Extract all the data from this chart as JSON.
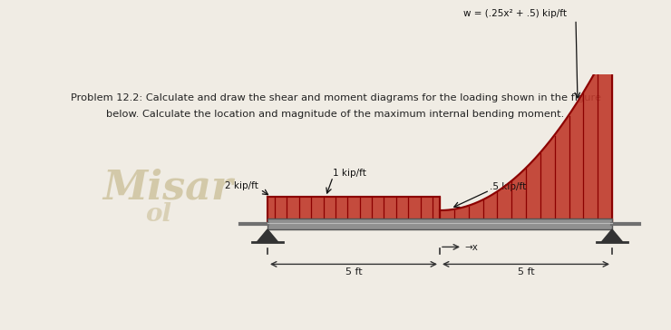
{
  "title_line1": "Problem 12.2: Calculate and draw the shear and moment diagrams for the loading shown in the figure",
  "title_line2": "below. Calculate the location and magnitude of the maximum internal bending moment.",
  "bg_color": "#f0ece4",
  "load_fill_color": "#c0392b",
  "load_line_color": "#8b0000",
  "text_color": "#222222",
  "label_2kip": "2 kip/ft",
  "label_1kip": "1 kip/ft",
  "label_05kip": ".5 kip/ft",
  "label_w": "w = (.25x² + .5) kip/ft",
  "label_5ft_left": "5 ft",
  "label_5ft_right": "5 ft",
  "label_x": "→x",
  "watermark_text": "Misar",
  "watermark_color": "#b0a070"
}
